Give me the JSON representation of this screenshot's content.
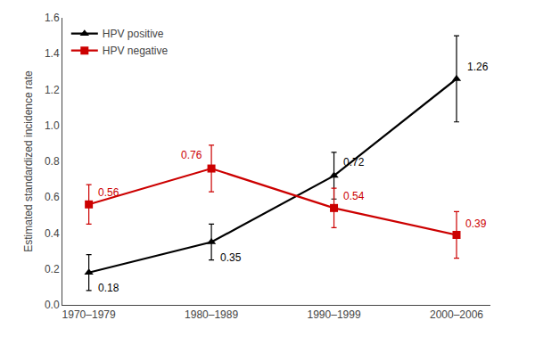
{
  "chart_data": {
    "type": "line",
    "categories": [
      "1970–1979",
      "1980–1989",
      "1990–1999",
      "2000–2006"
    ],
    "series": [
      {
        "name": "HPV positive",
        "color": "#000000",
        "marker": "triangle",
        "values": [
          0.18,
          0.35,
          0.72,
          1.26
        ],
        "errors": [
          0.1,
          0.1,
          0.13,
          0.24
        ]
      },
      {
        "name": "HPV negative",
        "color": "#cc0000",
        "marker": "square",
        "values": [
          0.56,
          0.76,
          0.54,
          0.39
        ],
        "errors": [
          0.11,
          0.13,
          0.11,
          0.13
        ]
      }
    ],
    "ylabel": "Estimated standardized incidence rate",
    "ylim": [
      0,
      1.6
    ],
    "yticks": [
      {
        "value": 0,
        "label": "0.0"
      },
      0.2,
      0.4,
      0.6,
      0.8,
      {
        "value": 1,
        "label": "1.0"
      },
      1.2,
      1.4,
      1.6
    ],
    "legend": "upper left",
    "grid": false,
    "data_labels": true
  }
}
